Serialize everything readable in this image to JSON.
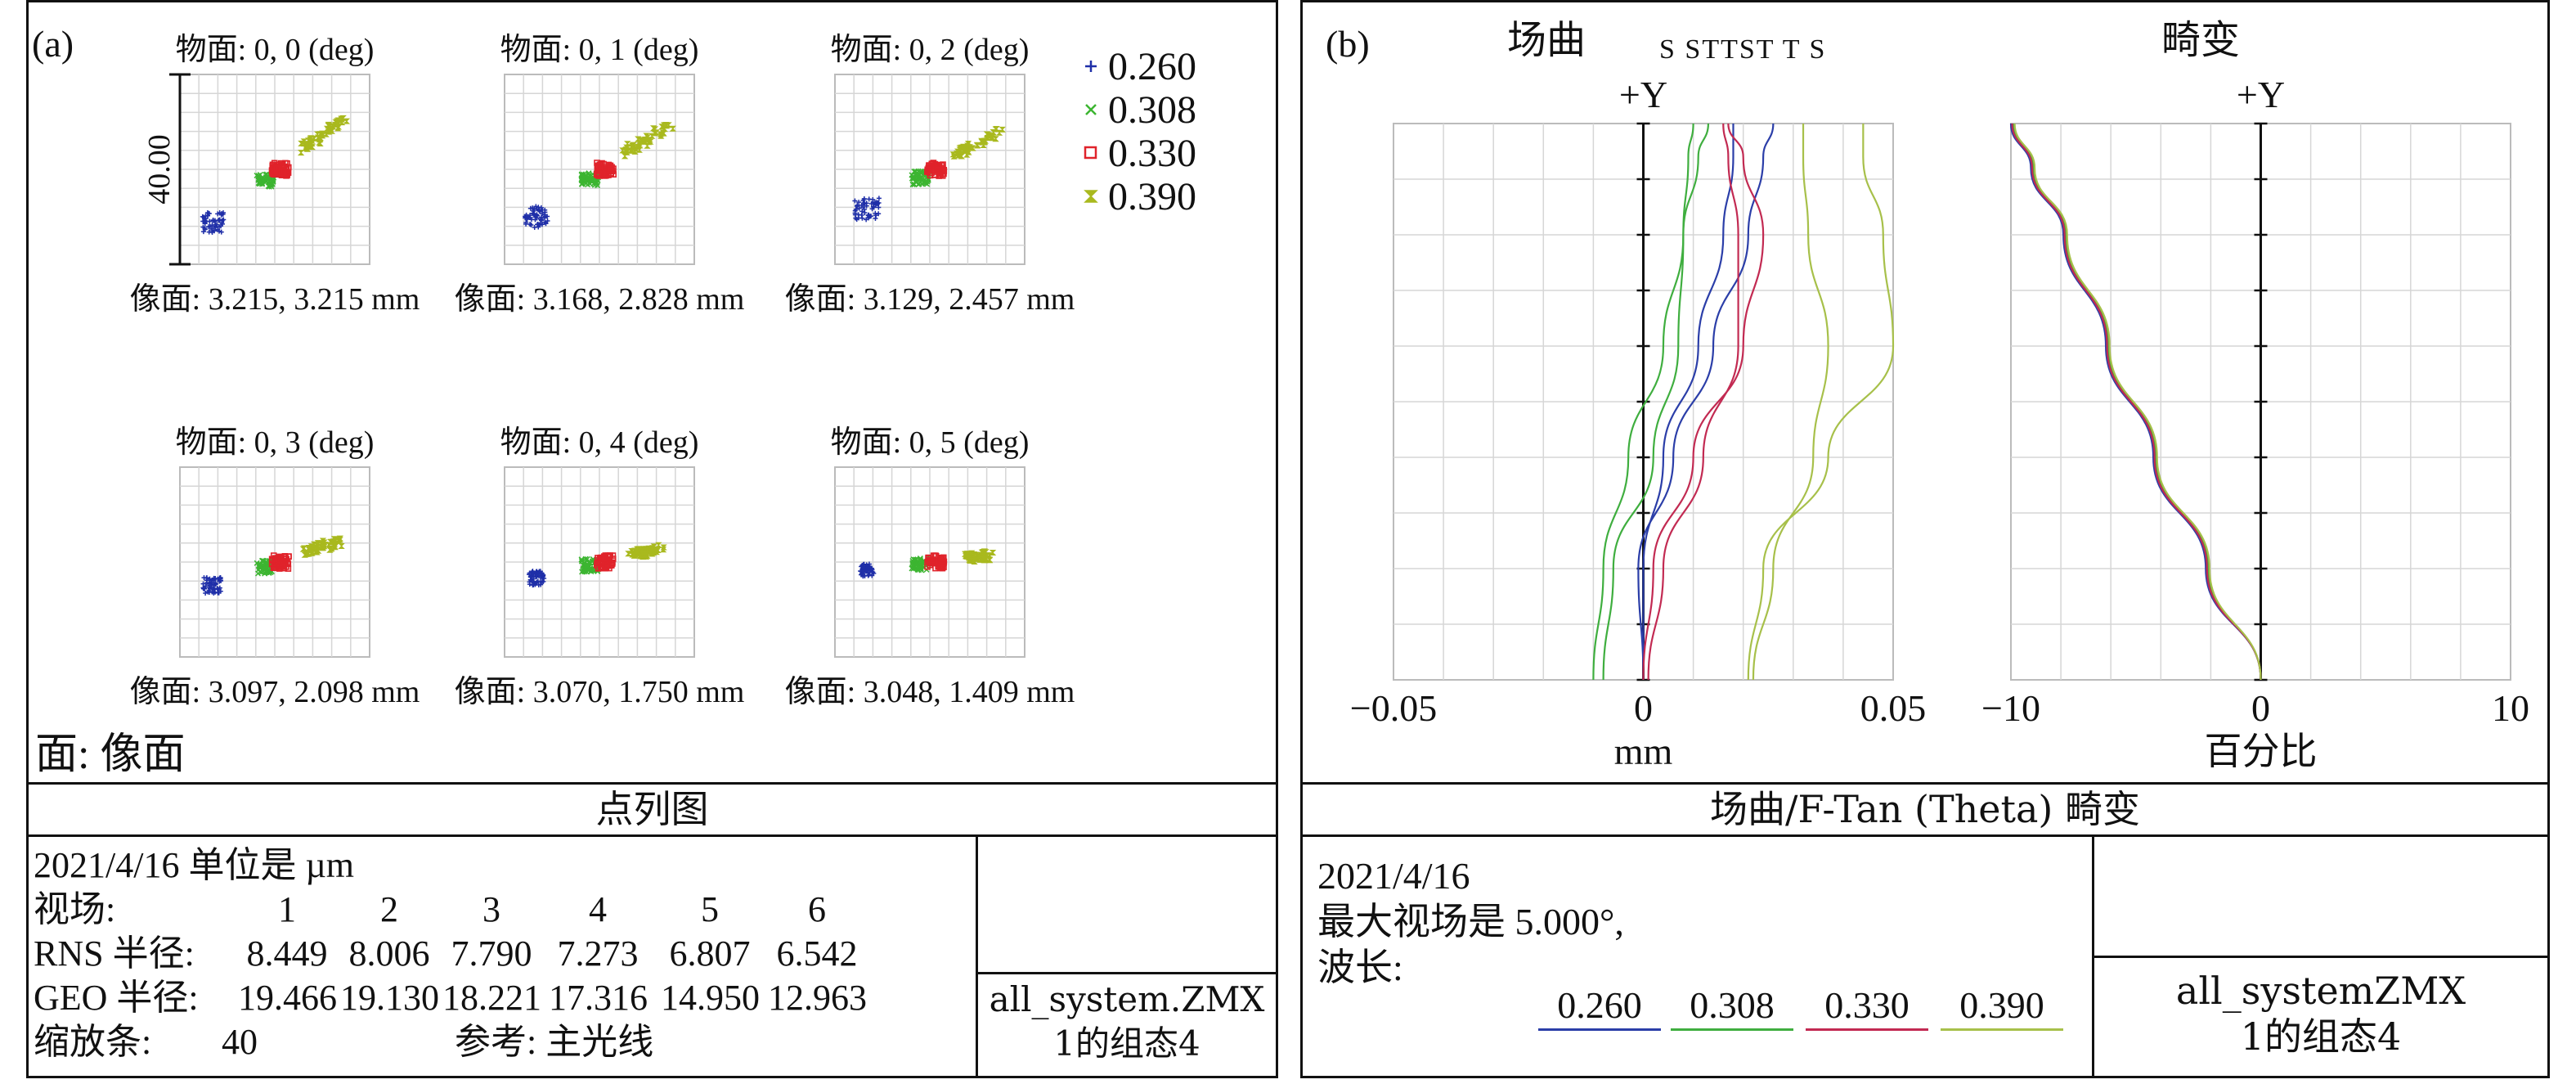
{
  "chart_data": [
    {
      "type": "scatter",
      "panel_label": "(a)",
      "title": "点列图",
      "scale_label": "40.00",
      "legend": [
        {
          "label": "0.260",
          "color": "#1f2fa8",
          "marker": "+"
        },
        {
          "label": "0.308",
          "color": "#3cb531",
          "marker": "x"
        },
        {
          "label": "0.330",
          "color": "#e0232b",
          "marker": "square"
        },
        {
          "label": "0.390",
          "color": "#a9b91e",
          "marker": "hourglass"
        }
      ],
      "fields": [
        {
          "object": "物面: 0, 0 (deg)",
          "image": "像面: 3.215, 3.215 mm",
          "spread": 1.0,
          "tilt": 0.0
        },
        {
          "object": "物面: 0, 1 (deg)",
          "image": "像面: 3.168, 2.828 mm",
          "spread": 1.05,
          "tilt": 0.1
        },
        {
          "object": "物面: 0, 2 (deg)",
          "image": "像面: 3.129, 2.457 mm",
          "spread": 1.1,
          "tilt": 0.25
        },
        {
          "object": "物面: 0, 3 (deg)",
          "image": "像面: 3.097, 2.098 mm",
          "spread": 0.8,
          "tilt": 0.55
        },
        {
          "object": "物面: 0, 4 (deg)",
          "image": "像面: 3.070, 1.750 mm",
          "spread": 0.7,
          "tilt": 0.7
        },
        {
          "object": "物面: 0, 5 (deg)",
          "image": "像面: 3.048, 1.409 mm",
          "spread": 0.6,
          "tilt": 0.85
        }
      ],
      "surface_label": "面: 像面",
      "info": {
        "date_unit": "2021/4/16 单位是 µm",
        "field_label": "视场:",
        "field_numbers": [
          "1",
          "2",
          "3",
          "4",
          "5",
          "6"
        ],
        "rms_label": "RNS 半径:",
        "rms_values": [
          "8.449",
          "8.006",
          "7.790",
          "7.273",
          "6.807",
          "6.542"
        ],
        "geo_label": "GEO 半径:",
        "geo_values": [
          "19.466",
          "19.130",
          "18.221",
          "17.316",
          "14.950",
          "12.963"
        ],
        "scale_bar": "缩放条:",
        "scale_bar_value": "40",
        "reference": "参考: 主光线",
        "file_line1": "all_system.ZMX",
        "file_line2": "1的组态4"
      }
    },
    {
      "type": "line",
      "panel_label": "(b)",
      "title": "场曲/F-Tan (Theta) 畸变",
      "field_curvature": {
        "title": "场曲",
        "axis_top": "+Y",
        "st_labels": "S STTST  T S",
        "xlabel": "mm",
        "xlim": [
          -0.05,
          0.05
        ],
        "xticks": [
          "−0.05",
          "0",
          "0.05"
        ],
        "ylim": [
          0,
          5
        ],
        "series": [
          {
            "name": "0.260 T",
            "color": "#2b3ea8",
            "x": [
              0.0,
              -0.001,
              0.006,
              0.014,
              0.021,
              0.024,
              0.026
            ],
            "y": [
              0,
              1,
              2,
              3,
              4,
              4.7,
              5
            ]
          },
          {
            "name": "0.260 S",
            "color": "#2b3ea8",
            "x": [
              0.0,
              0.0,
              0.004,
              0.011,
              0.016,
              0.018,
              0.018
            ],
            "y": [
              0,
              1,
              2,
              3,
              4,
              4.7,
              5
            ]
          },
          {
            "name": "0.308 T",
            "color": "#3fae3f",
            "x": [
              -0.008,
              -0.006,
              0.002,
              0.007,
              0.008,
              0.009,
              0.01
            ],
            "y": [
              0,
              1,
              2,
              3,
              4,
              4.7,
              5
            ]
          },
          {
            "name": "0.308 S",
            "color": "#3fae3f",
            "x": [
              -0.01,
              -0.008,
              -0.003,
              0.004,
              0.008,
              0.011,
              0.013
            ],
            "y": [
              0,
              1,
              2,
              3,
              4,
              4.7,
              5
            ]
          },
          {
            "name": "0.330 T",
            "color": "#c22a52",
            "x": [
              0.0,
              0.002,
              0.01,
              0.02,
              0.024,
              0.02,
              0.017
            ],
            "y": [
              0,
              1,
              2,
              3,
              4,
              4.7,
              5
            ]
          },
          {
            "name": "0.330 S",
            "color": "#c22a52",
            "x": [
              0.001,
              0.004,
              0.012,
              0.019,
              0.019,
              0.017,
              0.016
            ],
            "y": [
              0,
              1,
              2,
              3,
              4,
              4.7,
              5
            ]
          },
          {
            "name": "0.390 T",
            "color": "#a7c04a",
            "x": [
              0.021,
              0.024,
              0.037,
              0.05,
              0.048,
              0.044,
              0.044
            ],
            "y": [
              0,
              1,
              2,
              3,
              4,
              4.7,
              5
            ]
          },
          {
            "name": "0.390 S",
            "color": "#a7c04a",
            "x": [
              0.022,
              0.026,
              0.034,
              0.037,
              0.033,
              0.032,
              0.032
            ],
            "y": [
              0,
              1,
              2,
              3,
              4,
              4.7,
              5
            ]
          }
        ]
      },
      "distortion": {
        "title": "畸变",
        "axis_top": "+Y",
        "xlabel": "百分比",
        "xlim": [
          -10,
          10
        ],
        "xticks": [
          "−10",
          "0",
          "10"
        ],
        "ylim": [
          0,
          5
        ],
        "series": [
          {
            "name": "0.260",
            "color": "#2b3ea8",
            "x": [
              0,
              -2.2,
              -4.3,
              -6.2,
              -7.9,
              -9.2,
              -10
            ],
            "y": [
              0,
              1,
              2,
              3,
              4,
              4.6,
              5
            ]
          },
          {
            "name": "0.308",
            "color": "#3fae3f",
            "x": [
              0,
              -2.1,
              -4.2,
              -6.1,
              -7.8,
              -9.1,
              -9.9
            ],
            "y": [
              0,
              1,
              2,
              3,
              4,
              4.6,
              5
            ]
          },
          {
            "name": "0.330",
            "color": "#c22a52",
            "x": [
              0,
              -2.15,
              -4.25,
              -6.15,
              -7.85,
              -9.15,
              -9.95
            ],
            "y": [
              0,
              1,
              2,
              3,
              4,
              4.6,
              5
            ]
          },
          {
            "name": "0.390",
            "color": "#a7c04a",
            "x": [
              0,
              -2.05,
              -4.15,
              -6.05,
              -7.75,
              -9.05,
              -9.85
            ],
            "y": [
              0,
              1,
              2,
              3,
              4,
              4.6,
              5
            ]
          }
        ]
      },
      "info": {
        "date": "2021/4/16",
        "max_field": "最大视场是 5.000°,",
        "wavelength_label": "波长:",
        "wavelengths": [
          {
            "label": "0.260",
            "color": "#2b3ea8"
          },
          {
            "label": "0.308",
            "color": "#3fae3f"
          },
          {
            "label": "0.330",
            "color": "#c22a52"
          },
          {
            "label": "0.390",
            "color": "#a7c04a"
          }
        ],
        "file_line1": "all_systemZMX",
        "file_line2": "1的组态4"
      }
    }
  ]
}
